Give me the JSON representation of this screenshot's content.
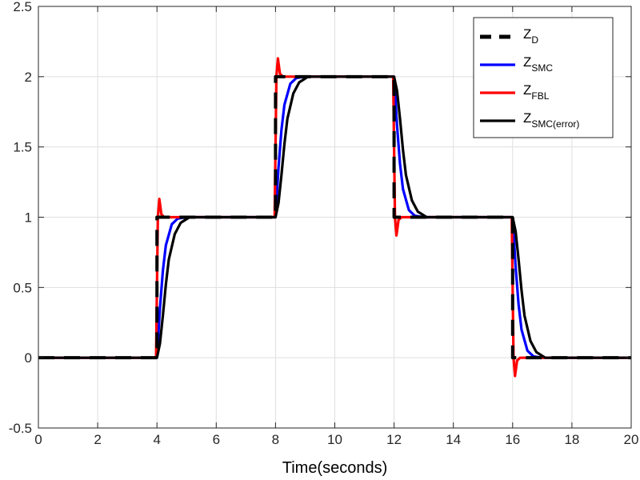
{
  "chart_data": {
    "type": "line",
    "xlabel": "Time(seconds)",
    "ylabel": "",
    "xlim": [
      0,
      20
    ],
    "ylim": [
      -0.5,
      2.5
    ],
    "xticks": [
      0,
      2,
      4,
      6,
      8,
      10,
      12,
      14,
      16,
      18,
      20
    ],
    "yticks": [
      -0.5,
      0,
      0.5,
      1,
      1.5,
      2,
      2.5
    ],
    "xtick_labels": [
      "0",
      "2",
      "4",
      "6",
      "8",
      "10",
      "12",
      "14",
      "16",
      "18",
      "20"
    ],
    "ytick_labels": [
      "-0.5",
      "0",
      "0.5",
      "1",
      "1.5",
      "2",
      "2.5"
    ],
    "grid": true,
    "legend_position": "top-right",
    "series": [
      {
        "name": "Z",
        "name_sub": "D",
        "color": "#000000",
        "style": "dashed",
        "x": [
          0,
          4,
          4,
          8,
          8,
          12,
          12,
          16,
          16,
          20
        ],
        "y": [
          0,
          0,
          1,
          1,
          2,
          2,
          1,
          1,
          0,
          0
        ]
      },
      {
        "name": "Z",
        "name_sub": "SMC",
        "color": "#0000ff",
        "style": "solid",
        "x": [
          0,
          4.0,
          4.1,
          4.2,
          4.3,
          4.5,
          4.7,
          5.0,
          8.0,
          8.1,
          8.2,
          8.3,
          8.5,
          8.7,
          9.0,
          12.0,
          12.1,
          12.2,
          12.3,
          12.5,
          12.7,
          13.0,
          16.0,
          16.1,
          16.2,
          16.3,
          16.5,
          16.7,
          17.0,
          20
        ],
        "y": [
          0,
          0,
          0.35,
          0.62,
          0.8,
          0.95,
          0.99,
          1.0,
          1.0,
          1.35,
          1.62,
          1.8,
          1.95,
          1.99,
          2.0,
          2.0,
          1.65,
          1.38,
          1.2,
          1.05,
          1.01,
          1.0,
          1.0,
          0.65,
          0.38,
          0.2,
          0.05,
          0.01,
          0,
          0
        ]
      },
      {
        "name": "Z",
        "name_sub": "FBL",
        "color": "#ff0000",
        "style": "solid",
        "x": [
          0,
          3.95,
          3.97,
          4.03,
          4.08,
          4.15,
          4.25,
          5.0,
          7.95,
          7.97,
          8.03,
          8.08,
          8.15,
          8.25,
          9.0,
          11.95,
          11.97,
          12.03,
          12.08,
          12.15,
          12.25,
          13.0,
          15.95,
          15.97,
          16.03,
          16.08,
          16.15,
          16.25,
          17.0,
          20
        ],
        "y": [
          0,
          0,
          0.0,
          1.0,
          1.13,
          1.02,
          1.0,
          1.0,
          1.0,
          1.0,
          2.0,
          2.13,
          2.02,
          2.0,
          2.0,
          2.0,
          2.0,
          1.0,
          0.87,
          0.98,
          1.0,
          1.0,
          1.0,
          1.0,
          0.0,
          -0.13,
          -0.02,
          0,
          0,
          0
        ]
      },
      {
        "name": "Z",
        "name_sub": "SMC(error)",
        "color": "#000000",
        "style": "solid",
        "x": [
          0,
          4.0,
          4.1,
          4.2,
          4.3,
          4.4,
          4.6,
          4.8,
          5.1,
          8.0,
          8.1,
          8.2,
          8.3,
          8.4,
          8.6,
          8.8,
          9.1,
          12.0,
          12.1,
          12.2,
          12.3,
          12.4,
          12.6,
          12.8,
          13.1,
          16.0,
          16.1,
          16.2,
          16.3,
          16.4,
          16.6,
          16.8,
          17.1,
          20
        ],
        "y": [
          0,
          0,
          0.1,
          0.3,
          0.52,
          0.7,
          0.88,
          0.96,
          1.0,
          1.0,
          1.1,
          1.3,
          1.52,
          1.7,
          1.88,
          1.96,
          2.0,
          2.0,
          1.9,
          1.7,
          1.48,
          1.3,
          1.12,
          1.04,
          1.0,
          1.0,
          0.9,
          0.7,
          0.48,
          0.3,
          0.12,
          0.04,
          0,
          0
        ]
      }
    ]
  }
}
